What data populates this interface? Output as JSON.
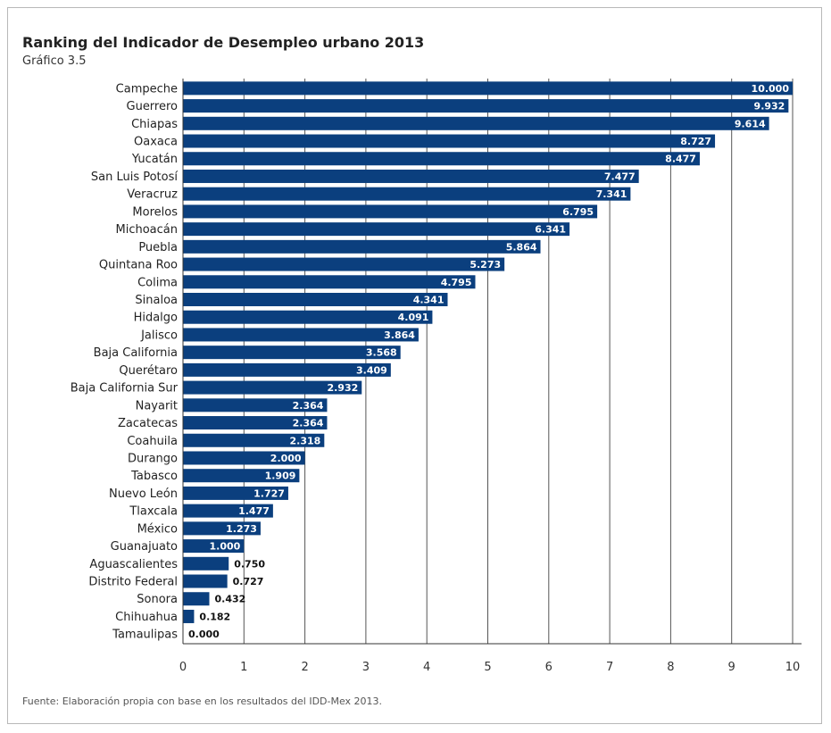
{
  "title": "Ranking del Indicador de Desempleo urbano 2013",
  "subtitle": "Gráfico 3.5",
  "source": "Fuente: Elaboración propia con base en los resultados del IDD-Mex 2013.",
  "colors": {
    "bar": "#0b3f7e",
    "grid": "#555555",
    "label_inside": "#ffffff",
    "label_outside": "#111111"
  },
  "chart_data": {
    "type": "bar",
    "orientation": "horizontal",
    "categories": [
      "Campeche",
      "Guerrero",
      "Chiapas",
      "Oaxaca",
      "Yucatán",
      "San Luis Potosí",
      "Veracruz",
      "Morelos",
      "Michoacán",
      "Puebla",
      "Quintana Roo",
      "Colima",
      "Sinaloa",
      "Hidalgo",
      "Jalisco",
      "Baja California",
      "Querétaro",
      "Baja California Sur",
      "Nayarit",
      "Zacatecas",
      "Coahuila",
      "Durango",
      "Tabasco",
      "Nuevo León",
      "Tlaxcala",
      "México",
      "Guanajuato",
      "Aguascalientes",
      "Distrito Federal",
      "Sonora",
      "Chihuahua",
      "Tamaulipas"
    ],
    "values": [
      10.0,
      9.932,
      9.614,
      8.727,
      8.477,
      7.477,
      7.341,
      6.795,
      6.341,
      5.864,
      5.273,
      4.795,
      4.341,
      4.091,
      3.864,
      3.568,
      3.409,
      2.932,
      2.364,
      2.364,
      2.318,
      2.0,
      1.909,
      1.727,
      1.477,
      1.273,
      1.0,
      0.75,
      0.727,
      0.432,
      0.182,
      0.0
    ],
    "value_labels": [
      "10.000",
      "9.932",
      "9.614",
      "8.727",
      "8.477",
      "7.477",
      "7.341",
      "6.795",
      "6.341",
      "5.864",
      "5.273",
      "4.795",
      "4.341",
      "4.091",
      "3.864",
      "3.568",
      "3.409",
      "2.932",
      "2.364",
      "2.364",
      "2.318",
      "2.000",
      "1.909",
      "1.727",
      "1.477",
      "1.273",
      "1.000",
      "0.750",
      "0.727",
      "0.432",
      "0.182",
      "0.000"
    ],
    "xticks": [
      "0",
      "1",
      "2",
      "3",
      "4",
      "5",
      "6",
      "7",
      "8",
      "9",
      "10"
    ],
    "xlim": [
      0,
      10
    ],
    "grid": true
  }
}
